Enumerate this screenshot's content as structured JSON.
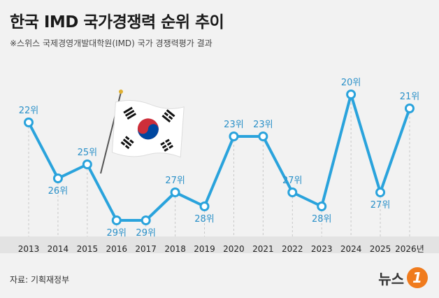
{
  "header": {
    "title": "한국 IMD 국가경쟁력 순위 추이",
    "subtitle": "※스위스 국제경영개발대학원(IMD) 국가 경쟁력평가 결과"
  },
  "footer": {
    "source": "자료: 기획재정부",
    "logo_text": "뉴스",
    "logo_mark": "1"
  },
  "colors": {
    "line": "#2aa3dc",
    "label": "#2a90c8",
    "axis_band": "#e3e3e3"
  },
  "chart_data": {
    "type": "line",
    "title": "한국 IMD 국가경쟁력 순위 추이",
    "categories": [
      "2013",
      "2014",
      "2015",
      "2016",
      "2017",
      "2018",
      "2019",
      "2020",
      "2021",
      "2022",
      "2023",
      "2024",
      "2025",
      "2026년"
    ],
    "series": [
      {
        "values": [
          22,
          26,
          25,
          29,
          29,
          27,
          28,
          23,
          23,
          27,
          28,
          20,
          27,
          21
        ],
        "labels": [
          "22위",
          "26위",
          "25위",
          "29위",
          "29위",
          "27위",
          "28위",
          "23위",
          "23위",
          "27위",
          "28위",
          "20위",
          "27위",
          "21위"
        ]
      }
    ],
    "y_axis": {
      "inverted": true,
      "range": [
        20,
        29
      ]
    },
    "grid": "vertical dashed",
    "decoration": "flag-of-south-korea"
  }
}
